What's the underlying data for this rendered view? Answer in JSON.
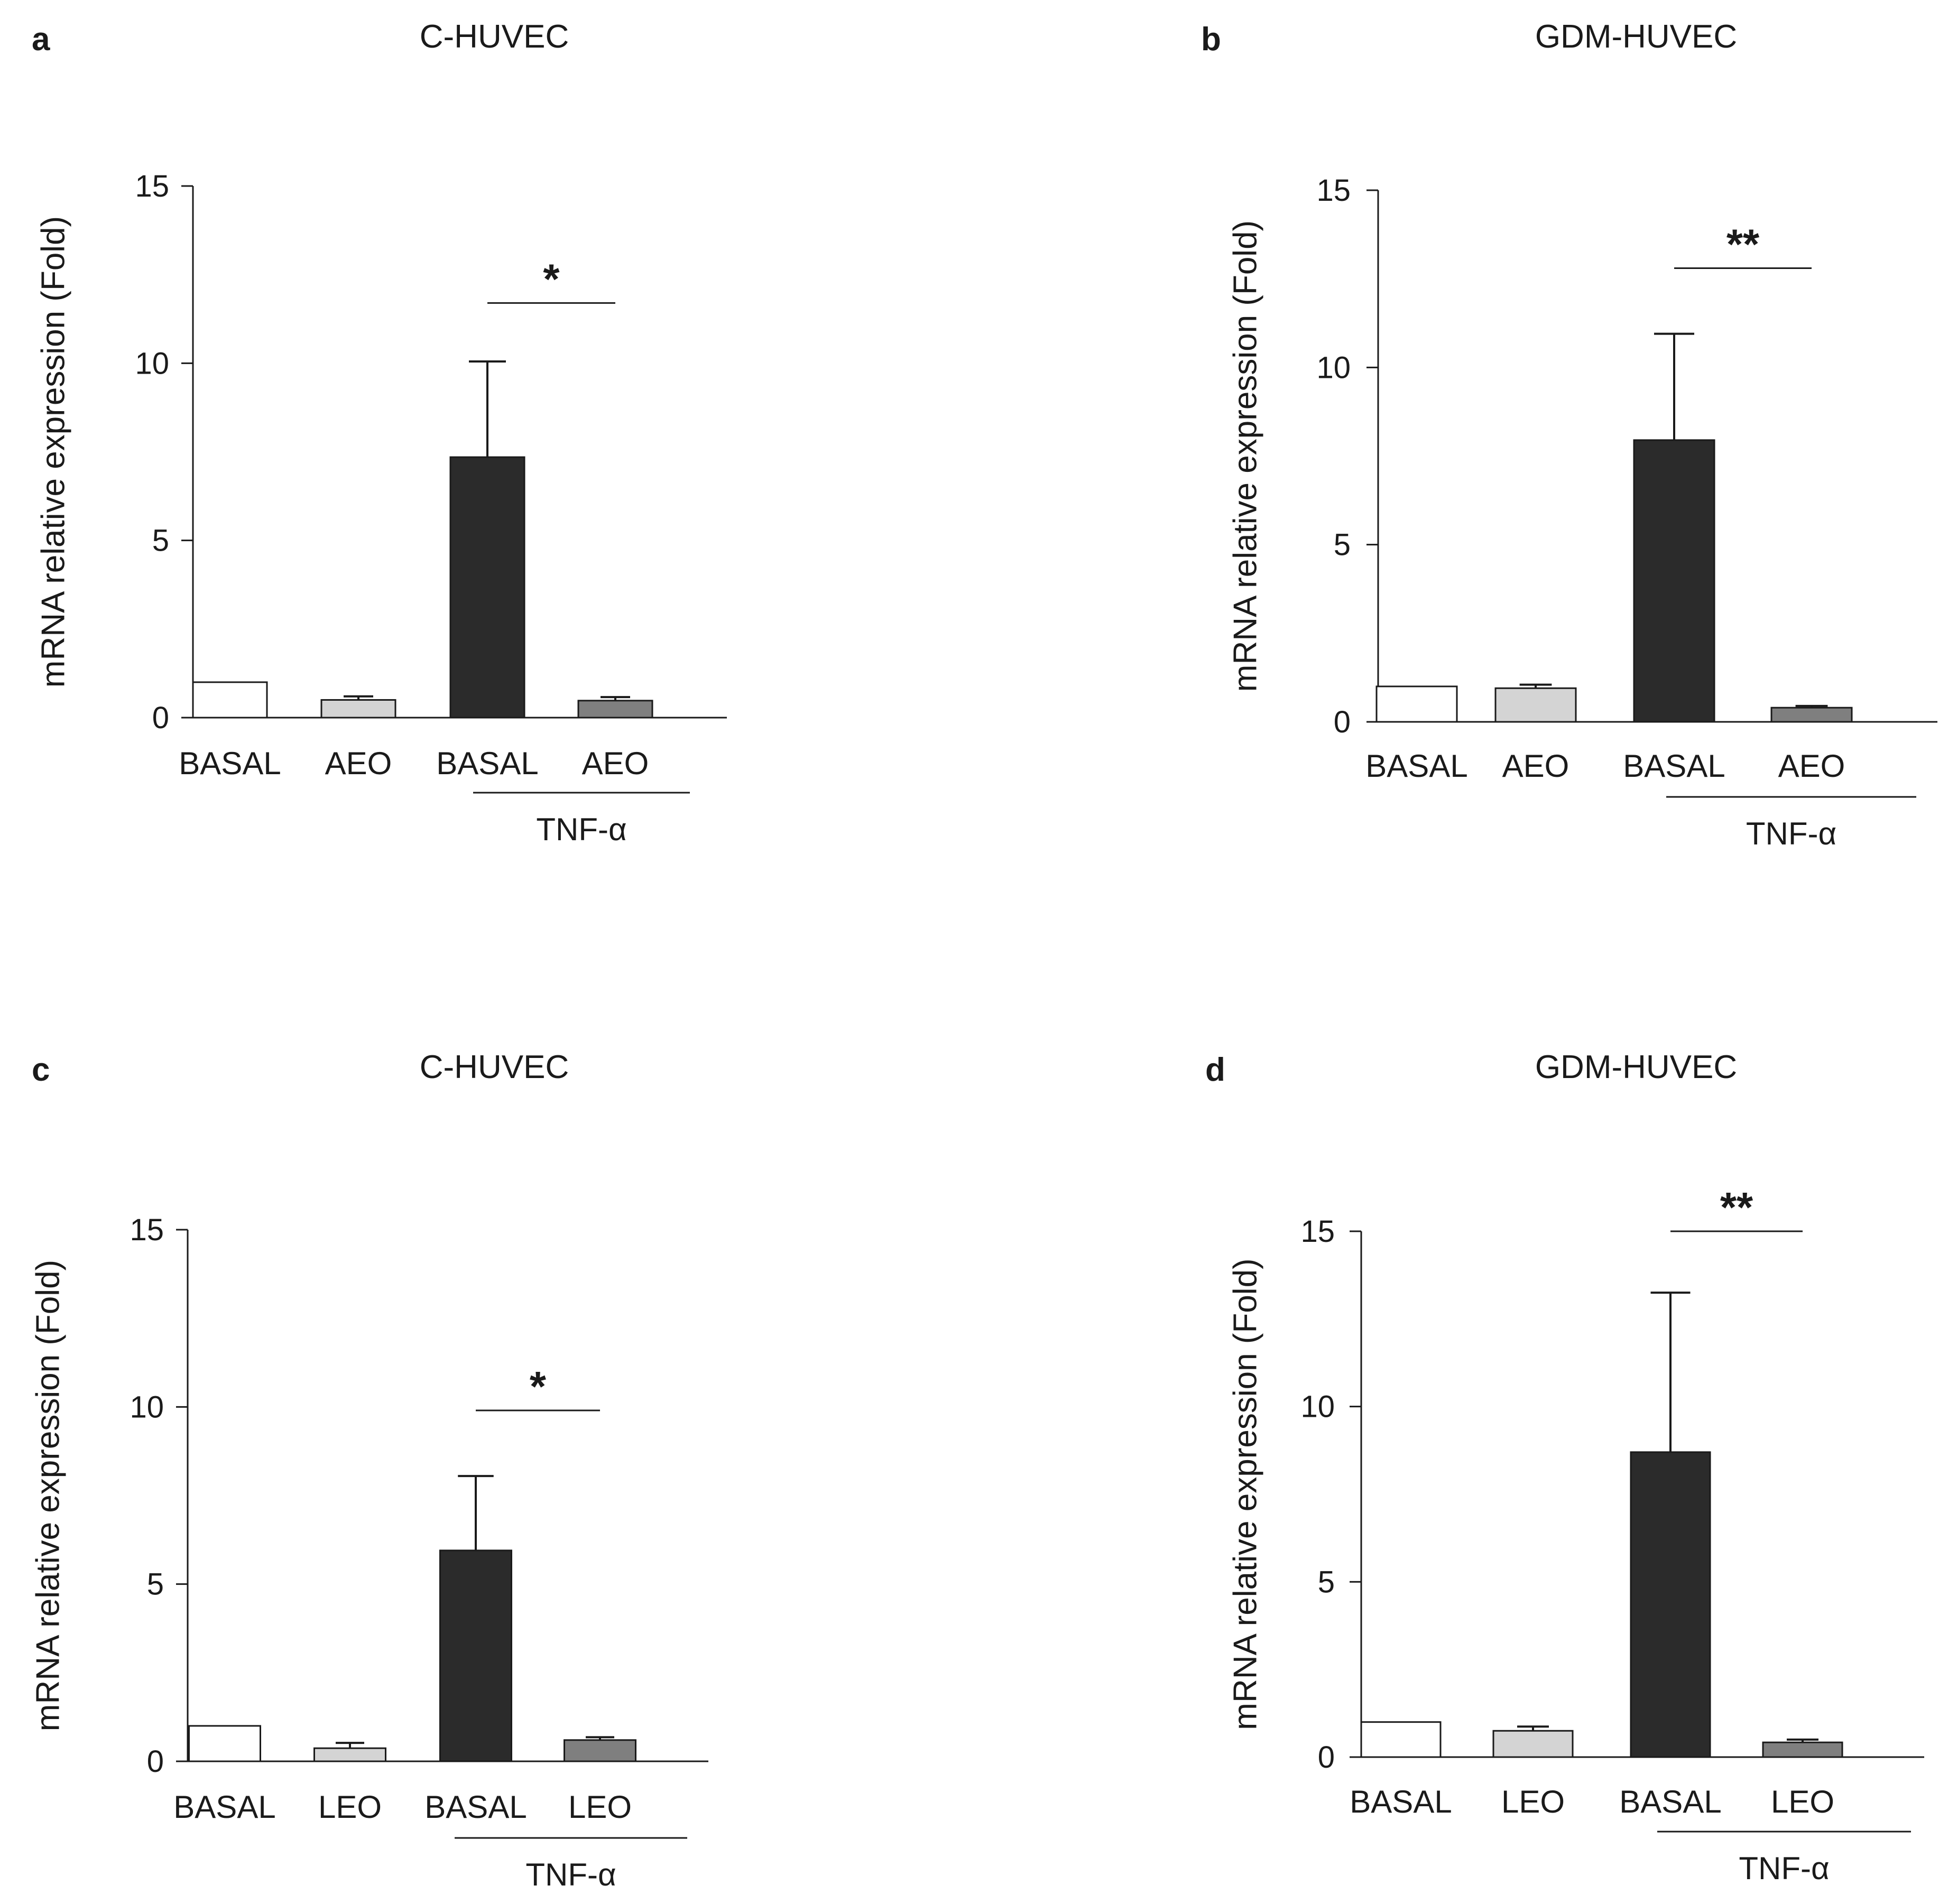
{
  "chart_data": [
    {
      "type": "bar",
      "panel": "a",
      "title": "C-HUVEC",
      "ylabel": "mRNA relative expression (Fold)",
      "xlabel": "",
      "ylim": [
        0,
        15
      ],
      "yticks": [
        0,
        5,
        10,
        15
      ],
      "categories": [
        "BASAL",
        "AEO",
        "BASAL",
        "AEO"
      ],
      "values": [
        1.0,
        0.5,
        7.35,
        0.48
      ],
      "errors": [
        0,
        0.1,
        2.7,
        0.1
      ],
      "colors": [
        "#ffffff",
        "#d4d4d4",
        "#2b2b2b",
        "#7f7f7f"
      ],
      "group_label": "TNF-α",
      "group_span": [
        2,
        3
      ],
      "significance": {
        "label": "*",
        "between": [
          2,
          3
        ],
        "y": 11.7
      }
    },
    {
      "type": "bar",
      "panel": "b",
      "title": "GDM-HUVEC",
      "ylabel": "mRNA relative expression (Fold)",
      "xlabel": "",
      "ylim": [
        0,
        15
      ],
      "yticks": [
        0,
        5,
        10,
        15
      ],
      "categories": [
        "BASAL",
        "AEO",
        "BASAL",
        "AEO"
      ],
      "values": [
        1.0,
        0.95,
        7.95,
        0.4
      ],
      "errors": [
        0,
        0.1,
        3.0,
        0.05
      ],
      "colors": [
        "#ffffff",
        "#d4d4d4",
        "#2b2b2b",
        "#7f7f7f"
      ],
      "group_label": "TNF-α",
      "group_span": [
        2,
        3
      ],
      "significance": {
        "label": "**",
        "between": [
          2,
          3
        ],
        "y": 12.8
      }
    },
    {
      "type": "bar",
      "panel": "c",
      "title": "C-HUVEC",
      "ylabel": "mRNA relative expression (Fold)",
      "xlabel": "",
      "ylim": [
        0,
        15
      ],
      "yticks": [
        0,
        5,
        10,
        15
      ],
      "categories": [
        "BASAL",
        "LEO",
        "BASAL",
        "LEO"
      ],
      "values": [
        1.0,
        0.37,
        5.95,
        0.6
      ],
      "errors": [
        0,
        0.15,
        2.1,
        0.08
      ],
      "colors": [
        "#ffffff",
        "#d4d4d4",
        "#2b2b2b",
        "#7f7f7f"
      ],
      "group_label": "TNF-α",
      "group_span": [
        2,
        3
      ],
      "significance": {
        "label": "*",
        "between": [
          2,
          3
        ],
        "y": 9.9
      }
    },
    {
      "type": "bar",
      "panel": "d",
      "title": "GDM-HUVEC",
      "ylabel": "mRNA relative expression (Fold)",
      "xlabel": "",
      "ylim": [
        0,
        15
      ],
      "yticks": [
        0,
        5,
        10,
        15
      ],
      "categories": [
        "BASAL",
        "LEO",
        "BASAL",
        "LEO"
      ],
      "values": [
        1.0,
        0.75,
        8.7,
        0.42
      ],
      "errors": [
        0,
        0.12,
        4.55,
        0.08
      ],
      "colors": [
        "#ffffff",
        "#d4d4d4",
        "#2b2b2b",
        "#7f7f7f"
      ],
      "group_label": "TNF-α",
      "group_span": [
        2,
        3
      ],
      "significance": {
        "label": "**",
        "between": [
          2,
          3
        ],
        "y": 15.0
      }
    }
  ]
}
